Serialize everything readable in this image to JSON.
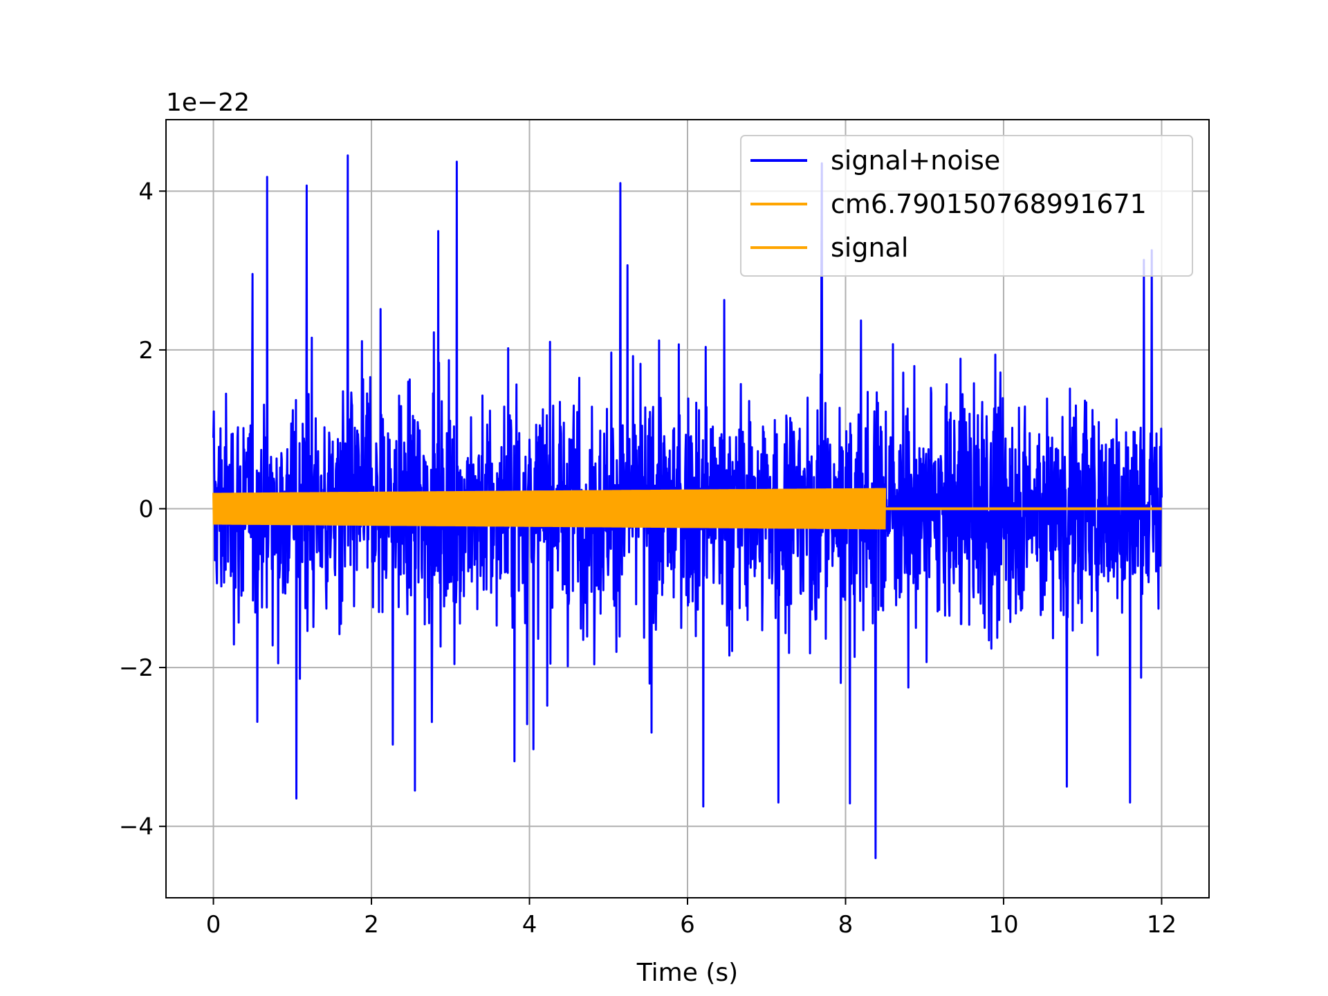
{
  "chart_data": {
    "type": "line",
    "xlabel": "Time (s)",
    "ylabel": "",
    "y_offset_label": "1e−22",
    "xlim": [
      -0.6,
      12.6
    ],
    "ylim": [
      -4.9,
      4.9
    ],
    "x_ticks": [
      0,
      2,
      4,
      6,
      8,
      10,
      12
    ],
    "x_tick_labels": [
      "0",
      "2",
      "4",
      "6",
      "8",
      "10",
      "12"
    ],
    "y_ticks": [
      -4,
      -2,
      0,
      2,
      4
    ],
    "y_tick_labels": [
      "−4",
      "−2",
      "0",
      "2",
      "4"
    ],
    "grid": true,
    "legend_position": "top-right",
    "series": [
      {
        "name": "signal+noise",
        "color": "#0000ff",
        "x_range": [
          0,
          12
        ],
        "envelope_min": -4.4,
        "envelope_max": 4.45,
        "typical_band": [
          -1.6,
          1.6
        ],
        "peaks": [
          {
            "x": 0.68,
            "y": 4.18
          },
          {
            "x": 1.18,
            "y": 4.07
          },
          {
            "x": 1.7,
            "y": 4.45
          },
          {
            "x": 3.08,
            "y": 4.37
          },
          {
            "x": 5.15,
            "y": 4.1
          },
          {
            "x": 7.7,
            "y": 4.35
          },
          {
            "x": 1.05,
            "y": -3.65
          },
          {
            "x": 2.55,
            "y": -3.55
          },
          {
            "x": 6.2,
            "y": -3.75
          },
          {
            "x": 7.15,
            "y": -3.7
          },
          {
            "x": 8.38,
            "y": -4.4
          },
          {
            "x": 10.8,
            "y": -3.5
          },
          {
            "x": 11.6,
            "y": -3.7
          }
        ]
      },
      {
        "name": "cm6.790150768991671",
        "color": "#ffa500",
        "x_range": [
          0,
          12
        ],
        "values_note": "",
        "amplitude": 0.0
      },
      {
        "name": "signal",
        "color": "#ffa500",
        "x_range": [
          0,
          12
        ],
        "chirp_end": 8.5,
        "amplitude_start": 0.2,
        "amplitude_end": 0.26
      }
    ]
  }
}
